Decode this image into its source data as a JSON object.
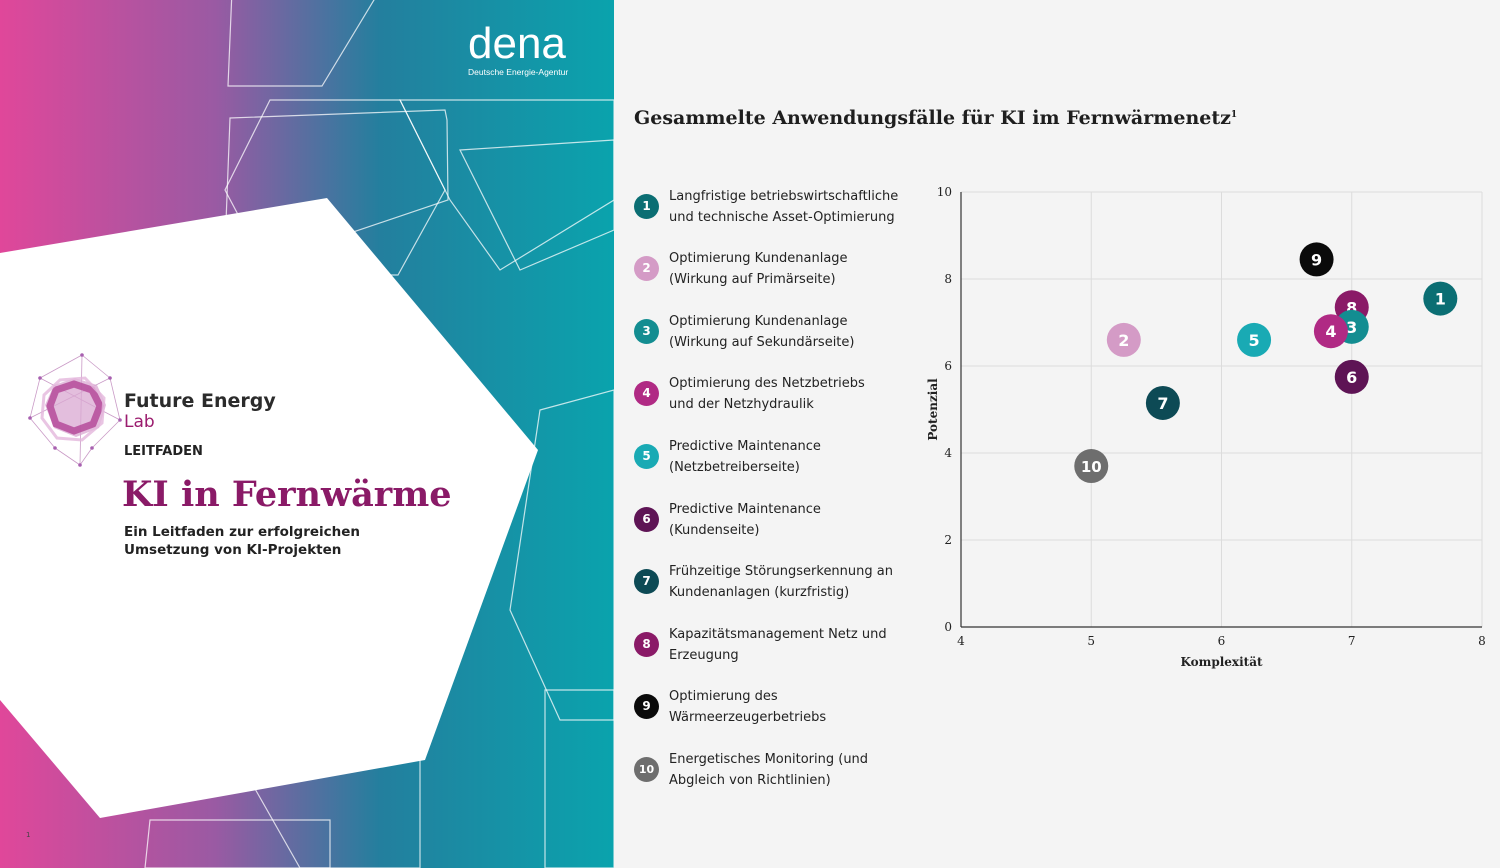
{
  "cover": {
    "brand_word": "dena",
    "brand_sub": "Deutsche Energie-Agentur",
    "lab_title": "Future Energy",
    "lab_sub": "Lab",
    "kicker": "LEITFADEN",
    "title": "KI in Fernwärme",
    "subtitle": "Ein Leitfaden zur erfolgreichen Umsetzung von KI-Projekten",
    "page_number": "1"
  },
  "colors": {
    "c1": "#0b6e73",
    "c2": "#d49bc6",
    "c3": "#138d91",
    "c4": "#b02a84",
    "c5": "#19aab4",
    "c6": "#5e1455",
    "c7": "#0d4a55",
    "c8": "#8a1a67",
    "c9": "#0a0a0a",
    "c10": "#6e6e6e"
  },
  "chart_data": {
    "type": "scatter",
    "title": "Gesammelte Anwendungsfälle für KI im Fernwärmenetz",
    "title_footnote": "1",
    "xlabel": "Komplexität",
    "ylabel": "Potenzial",
    "xlim": [
      4,
      8
    ],
    "ylim": [
      0,
      10
    ],
    "xticks": [
      "4",
      "5",
      "6",
      "7",
      "8"
    ],
    "yticks": [
      "0",
      "2",
      "4",
      "6",
      "8",
      "10"
    ],
    "grid": true,
    "points": [
      {
        "id": "1",
        "x": 7.68,
        "y": 7.55,
        "color": "#0b6e73",
        "label": "Langfristige betriebswirtschaftliche und technische Asset-Optimierung"
      },
      {
        "id": "2",
        "x": 5.25,
        "y": 6.6,
        "color": "#d49bc6",
        "label": "Optimierung Kundenanlage (Wirkung auf Primärseite)"
      },
      {
        "id": "3",
        "x": 7.0,
        "y": 6.9,
        "color": "#138d91",
        "label": "Optimierung Kundenanlage (Wirkung auf Sekundärseite)"
      },
      {
        "id": "4",
        "x": 6.84,
        "y": 6.8,
        "color": "#b02a84",
        "label": "Optimierung des Netzbetriebs und der Netzhydraulik"
      },
      {
        "id": "5",
        "x": 6.25,
        "y": 6.6,
        "color": "#19aab4",
        "label": "Predictive Maintenance (Netzbetreiberseite)"
      },
      {
        "id": "6",
        "x": 7.0,
        "y": 5.75,
        "color": "#5e1455",
        "label": "Predictive Maintenance (Kundenseite)"
      },
      {
        "id": "7",
        "x": 5.55,
        "y": 5.15,
        "color": "#0d4a55",
        "label": "Frühzeitige Störungserkennung an Kundenanlagen (kurzfristig)"
      },
      {
        "id": "8",
        "x": 7.0,
        "y": 7.35,
        "color": "#8a1a67",
        "label": "Kapazitätsmanagement Netz und Erzeugung"
      },
      {
        "id": "9",
        "x": 6.73,
        "y": 8.45,
        "color": "#0a0a0a",
        "label": "Optimierung des Wärmeerzeugerbetriebs"
      },
      {
        "id": "10",
        "x": 5.0,
        "y": 3.7,
        "color": "#6e6e6e",
        "label": "Energetisches Monitoring (und Abgleich von Richtlinien)"
      }
    ]
  },
  "legend": [
    {
      "num": "1",
      "line1": "Langfristige betriebswirtschaftliche",
      "line2": "und technische Asset-Optimierung",
      "color": "#0b6e73"
    },
    {
      "num": "2",
      "line1": "Optimierung Kundenanlage",
      "line2": "(Wirkung auf Primärseite)",
      "color": "#d49bc6"
    },
    {
      "num": "3",
      "line1": "Optimierung Kundenanlage",
      "line2": "(Wirkung auf Sekundärseite)",
      "color": "#138d91"
    },
    {
      "num": "4",
      "line1": "Optimierung des Netzbetriebs",
      "line2": "und der Netzhydraulik",
      "color": "#b02a84"
    },
    {
      "num": "5",
      "line1": "Predictive Maintenance",
      "line2": "(Netzbetreiberseite)",
      "color": "#19aab4"
    },
    {
      "num": "6",
      "line1": "Predictive Maintenance",
      "line2": "(Kundenseite)",
      "color": "#5e1455"
    },
    {
      "num": "7",
      "line1": "Frühzeitige Störungserkennung an",
      "line2": "Kundenanlagen (kurzfristig)",
      "color": "#0d4a55"
    },
    {
      "num": "8",
      "line1": "Kapazitätsmanagement Netz und",
      "line2": "Erzeugung",
      "color": "#8a1a67"
    },
    {
      "num": "9",
      "line1": "Optimierung des",
      "line2": "Wärmeerzeugerbetriebs",
      "color": "#0a0a0a"
    },
    {
      "num": "10",
      "line1": "Energetisches Monitoring (und",
      "line2": "Abgleich von Richtlinien)",
      "color": "#6e6e6e"
    }
  ]
}
